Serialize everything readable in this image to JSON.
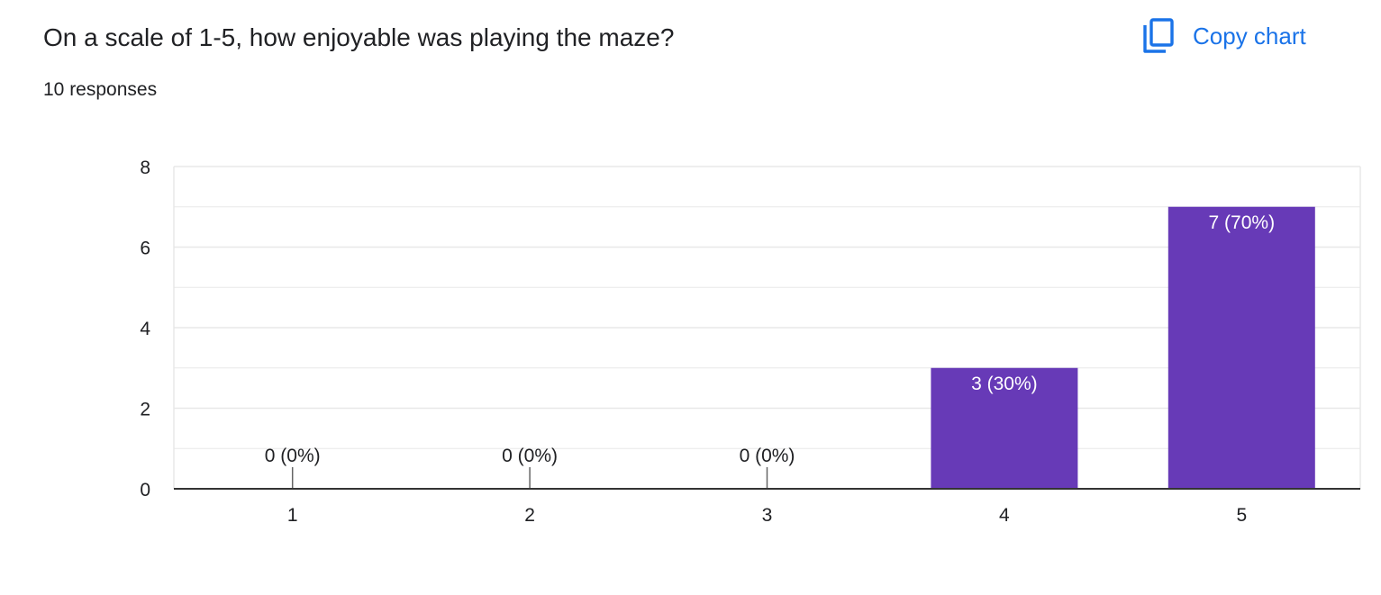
{
  "question": {
    "title": "On a scale of 1-5, how enjoyable was playing the maze?",
    "responses": "10 responses"
  },
  "toolbar": {
    "copy_label": "Copy chart",
    "copy_icon": "copy-icon"
  },
  "colors": {
    "bar": "#673ab7",
    "accent": "#1a73e8",
    "grid": "#e8e8e8",
    "axis": "#333333",
    "text": "#202124"
  },
  "chart_data": {
    "type": "bar",
    "categories": [
      "1",
      "2",
      "3",
      "4",
      "5"
    ],
    "values": [
      0,
      0,
      0,
      3,
      7
    ],
    "data_labels": [
      "0 (0%)",
      "0 (0%)",
      "0 (0%)",
      "3 (30%)",
      "7 (70%)"
    ],
    "yticks": [
      0,
      2,
      4,
      6,
      8
    ],
    "ylim": [
      0,
      8
    ],
    "grid": true,
    "title": "On a scale of 1-5, how enjoyable was playing the maze?",
    "xlabel": "",
    "ylabel": ""
  }
}
